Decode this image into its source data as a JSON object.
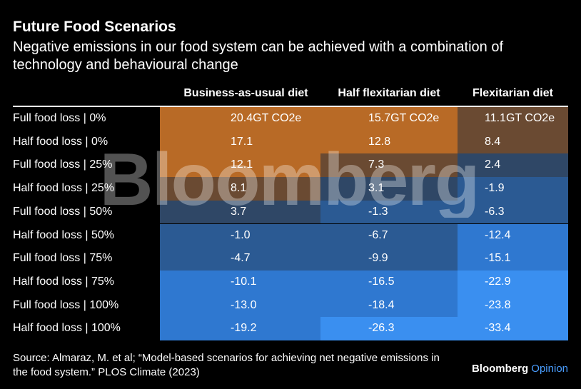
{
  "title": "Future Food Scenarios",
  "subtitle": "Negative emissions in our food system can be achieved with a combination of technology and behavioural change",
  "source": "Source: Almaraz, M. et al; “Model-based scenarios for achieving net negative emissions in the food system.” PLOS Climate (2023)",
  "logo": {
    "brand": "Bloomberg",
    "section": "Opinion"
  },
  "watermark": "Bloomberg",
  "colors": {
    "background": "#000000",
    "text": "#ffffff",
    "orange": "#b86a26",
    "dark_brown": "#6a4a32",
    "muted_navy": "#2f4766",
    "navy": "#2b5a93",
    "blue": "#2f78d0",
    "bright_blue": "#3a8ff0",
    "accent_blue": "#4a9eff"
  },
  "chart_data": {
    "type": "table",
    "title": "Future Food Scenarios",
    "subtitle": "Negative emissions in our food system can be achieved with a combination of technology and behavioural change",
    "columns": [
      "Business-as-usual diet",
      "Half flexitarian diet",
      "Flexitarian diet"
    ],
    "rows": [
      "Full food loss | 0%",
      "Half food loss | 0%",
      "Full food loss | 25%",
      "Half food loss | 25%",
      "Full food loss | 50%",
      "Half food loss | 50%",
      "Full food loss | 75%",
      "Half food loss | 75%",
      "Full food loss | 100%",
      "Half food loss | 100%"
    ],
    "values": [
      [
        20.4,
        15.7,
        11.1
      ],
      [
        17.1,
        12.8,
        8.4
      ],
      [
        12.1,
        7.3,
        2.4
      ],
      [
        8.1,
        3.1,
        -1.9
      ],
      [
        3.7,
        -1.3,
        -6.3
      ],
      [
        -1.0,
        -6.7,
        -12.4
      ],
      [
        -4.7,
        -9.9,
        -15.1
      ],
      [
        -10.1,
        -16.5,
        -22.9
      ],
      [
        -13.0,
        -18.4,
        -23.8
      ],
      [
        -19.2,
        -26.3,
        -33.4
      ]
    ],
    "display": [
      [
        "20.4GT CO2e",
        "15.7GT CO2e",
        "11.1GT CO2e"
      ],
      [
        "17.1",
        "12.8",
        "8.4"
      ],
      [
        "12.1",
        "7.3",
        "2.4"
      ],
      [
        "8.1",
        "3.1",
        "-1.9"
      ],
      [
        "3.7",
        "-1.3",
        "-6.3"
      ],
      [
        "-1.0",
        "-6.7",
        "-12.4"
      ],
      [
        "-4.7",
        "-9.9",
        "-15.1"
      ],
      [
        "-10.1",
        "-16.5",
        "-22.9"
      ],
      [
        "-13.0",
        "-18.4",
        "-23.8"
      ],
      [
        "-19.2",
        "-26.3",
        "-33.4"
      ]
    ],
    "unit": "GT CO2e",
    "color_bins": [
      {
        "min": 12,
        "max": 25,
        "color": "#b86a26"
      },
      {
        "min": 5,
        "max": 12,
        "color": "#6a4a32"
      },
      {
        "min": 0,
        "max": 5,
        "color": "#2f4766"
      },
      {
        "min": -10,
        "max": 0,
        "color": "#2b5a93"
      },
      {
        "min": -20,
        "max": -10,
        "color": "#2f78d0"
      },
      {
        "min": -40,
        "max": -20,
        "color": "#3a8ff0"
      }
    ]
  }
}
